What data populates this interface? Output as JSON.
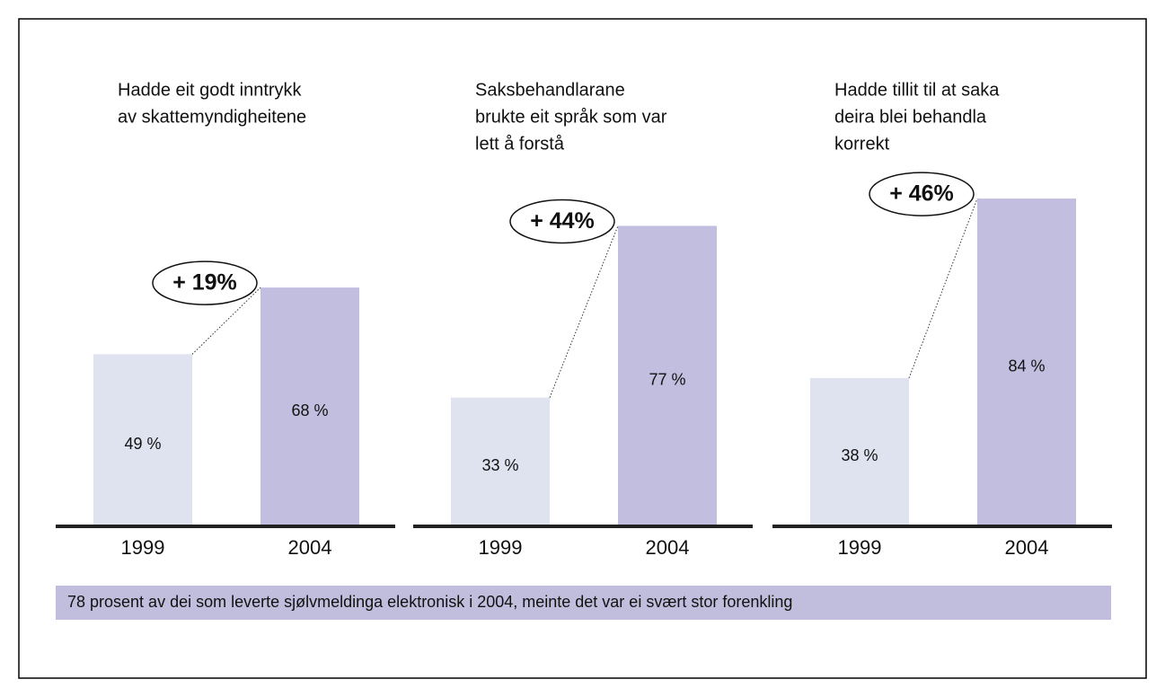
{
  "chart_data": [
    {
      "type": "bar",
      "title": [
        "Hadde eit godt inntrykk",
        "av skattemyndigheitene"
      ],
      "categories": [
        "1999",
        "2004"
      ],
      "values": [
        49,
        68
      ],
      "value_labels": [
        "49 %",
        "68 %"
      ],
      "colors": [
        "#dfe3f0",
        "#c1bedf"
      ],
      "annotation": "+ 19%",
      "ylim": [
        0,
        100
      ]
    },
    {
      "type": "bar",
      "title": [
        "Saksbehandlarane",
        "brukte eit språk som var",
        "lett å forstå"
      ],
      "categories": [
        "1999",
        "2004"
      ],
      "values": [
        33,
        77
      ],
      "value_labels": [
        "33 %",
        "77 %"
      ],
      "colors": [
        "#dfe3f0",
        "#c1bedf"
      ],
      "annotation": "+ 44%",
      "ylim": [
        0,
        90
      ]
    },
    {
      "type": "bar",
      "title": [
        "Hadde tillit til at saka",
        "deira blei behandla",
        "korrekt"
      ],
      "categories": [
        "1999",
        "2004"
      ],
      "values": [
        38,
        84
      ],
      "value_labels": [
        "38 %",
        "84 %"
      ],
      "colors": [
        "#dfe3f0",
        "#c1bedf"
      ],
      "annotation": "+ 46%",
      "ylim": [
        0,
        90
      ]
    }
  ],
  "footer": "78 prosent av dei som leverte sjølvmeldinga elektronisk i 2004, meinte det var ei svært stor forenkling"
}
